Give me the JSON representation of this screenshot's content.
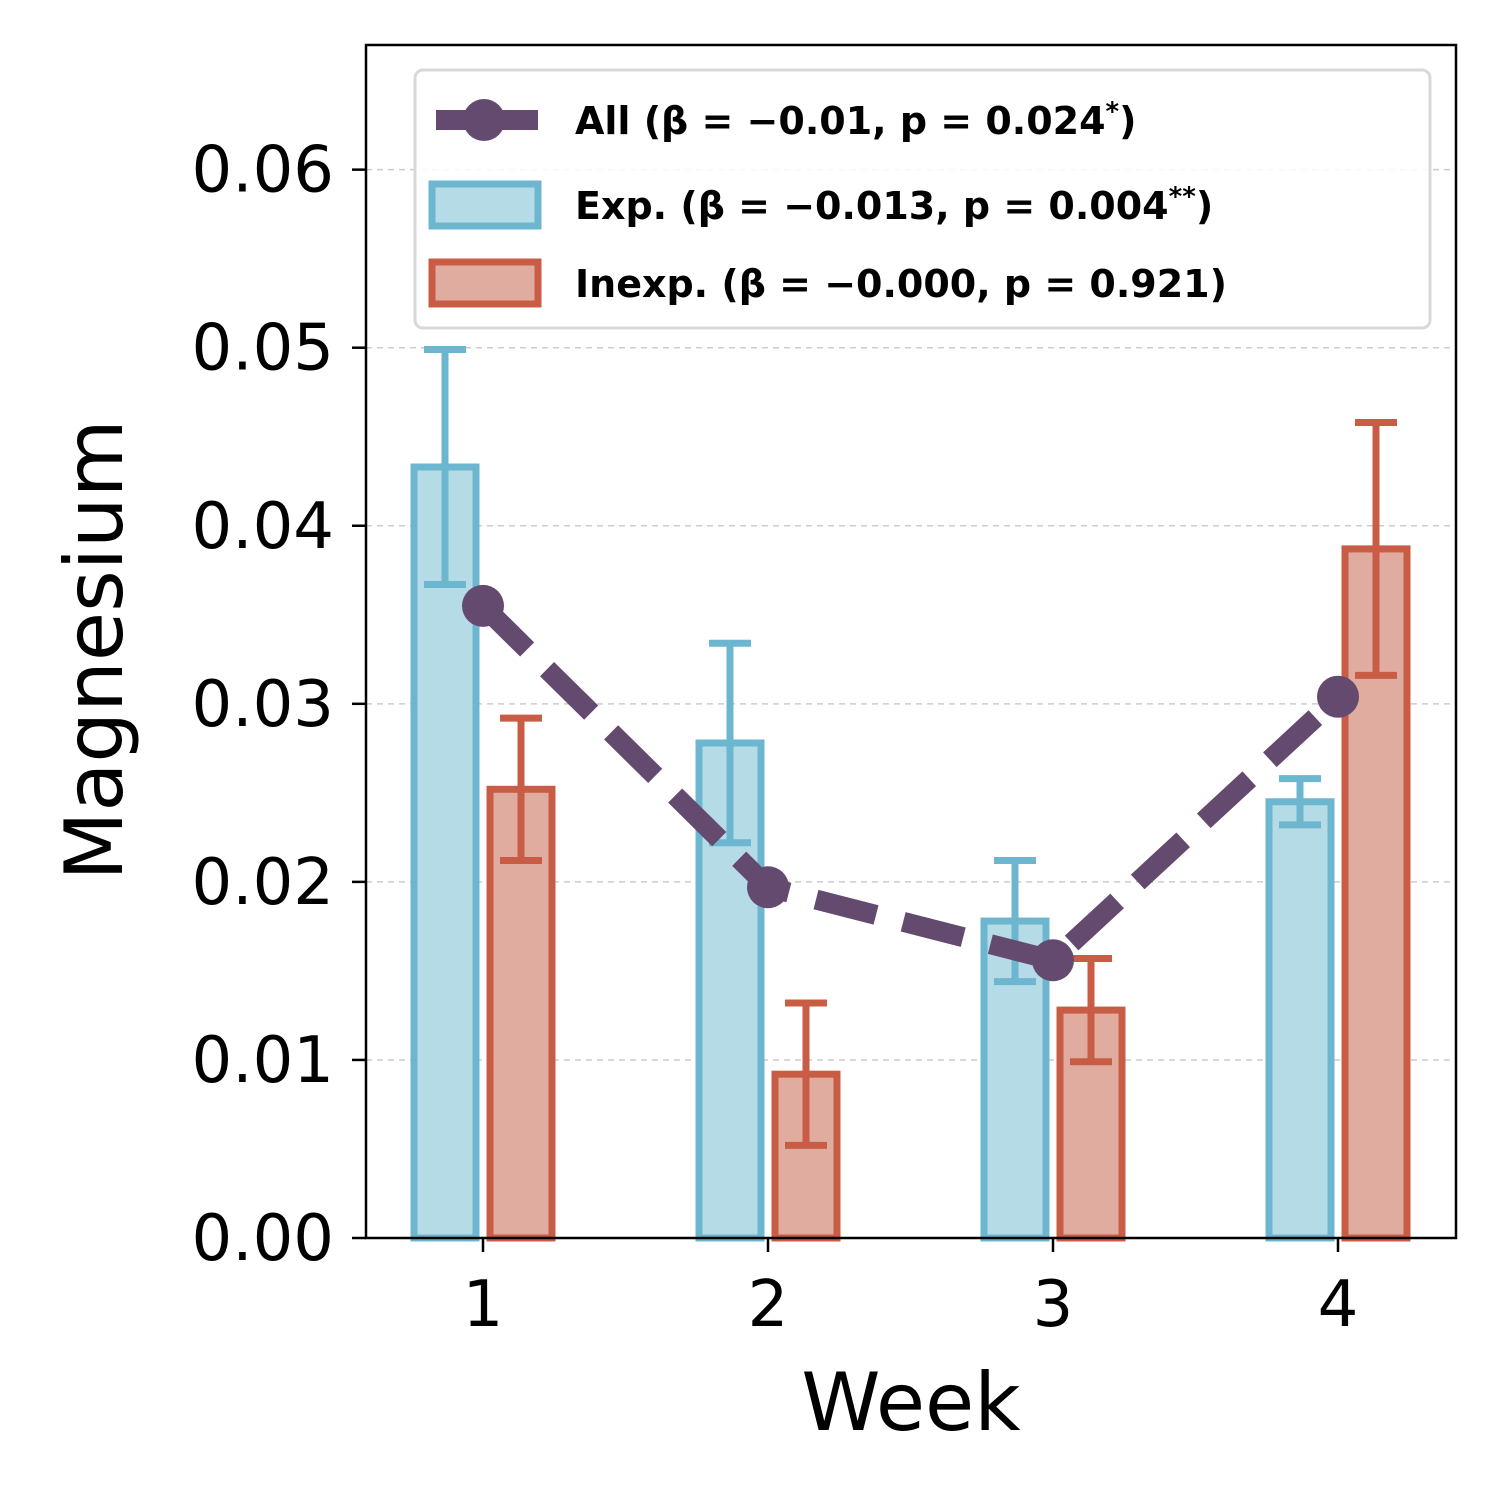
{
  "chart_data": {
    "type": "bar",
    "categories": [
      "1",
      "2",
      "3",
      "4"
    ],
    "xlabel": "Week",
    "ylabel": "Magnesium",
    "ylim": [
      0,
      0.067
    ],
    "yticks": [
      "0.00",
      "0.01",
      "0.02",
      "0.03",
      "0.04",
      "0.05",
      "0.06"
    ],
    "grid": "y-dashed",
    "legend_position": "top-right",
    "series": [
      {
        "name": "Exp. (β = −0.013, p = 0.004**)",
        "label_main": "Exp. (β = −0.013, p = 0.004",
        "label_sup": "**",
        "label_end": ")",
        "kind": "bar",
        "values": [
          0.0433,
          0.0278,
          0.0178,
          0.0245
        ],
        "errors": [
          0.0066,
          0.0056,
          0.0034,
          0.0013
        ],
        "edge_color": "#6db6cf",
        "fill_color": "#b5dbe6"
      },
      {
        "name": "Inexp. (β = −0.000, p = 0.921)",
        "label_main": "Inexp. (β = −0.000, p = 0.921)",
        "label_sup": "",
        "label_end": "",
        "kind": "bar",
        "values": [
          0.0252,
          0.0092,
          0.0128,
          0.0387
        ],
        "errors": [
          0.004,
          0.004,
          0.0029,
          0.0071
        ],
        "edge_color": "#c85c45",
        "fill_color": "#e0aca0"
      },
      {
        "name": "All (β = −0.01, p = 0.024*)",
        "label_main": "All (β = −0.01, p = 0.024",
        "label_sup": "*",
        "label_end": ")",
        "kind": "line",
        "values": [
          0.0355,
          0.0197,
          0.0156,
          0.0304
        ],
        "color": "#654a70",
        "style": "dashed",
        "marker": "circle"
      }
    ]
  }
}
